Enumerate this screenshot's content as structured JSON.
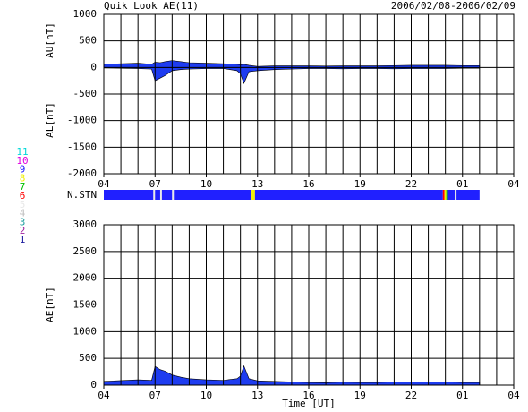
{
  "title": "Quik Look AE(11)",
  "date_range": "2006/02/08-2006/02/09",
  "chart_data": [
    {
      "type": "area",
      "ylabel_upper": "AU[nT]",
      "ylabel_lower": "AL[nT]",
      "x": [
        4,
        5,
        6,
        6.8,
        7,
        7.3,
        7.6,
        8,
        8.5,
        9,
        10,
        11,
        11.8,
        12,
        12.2,
        12.5,
        13,
        14,
        15,
        16,
        17,
        18,
        19,
        20,
        21,
        22,
        23,
        24,
        25,
        26
      ],
      "series": [
        {
          "color": "#1e3cf0",
          "values": [
            60,
            70,
            80,
            60,
            100,
            90,
            110,
            130,
            110,
            90,
            80,
            70,
            60,
            50,
            60,
            40,
            20,
            30,
            30,
            30,
            25,
            30,
            30,
            30,
            35,
            40,
            40,
            40,
            35,
            35
          ]
        },
        {
          "color": "#1e3cf0",
          "values": [
            -10,
            -15,
            -20,
            -30,
            -250,
            -200,
            -150,
            -60,
            -40,
            -30,
            -20,
            -20,
            -60,
            -120,
            -300,
            -80,
            -60,
            -40,
            -30,
            -20,
            -20,
            -25,
            -20,
            -20,
            -25,
            -20,
            -20,
            -20,
            -15,
            -15
          ]
        }
      ],
      "xlim": [
        4,
        28
      ],
      "xticks": [
        {
          "value": 4,
          "label": "04"
        },
        {
          "value": 7,
          "label": "07"
        },
        10,
        13,
        16,
        19,
        22,
        {
          "value": 25,
          "label": "01"
        },
        {
          "value": 28,
          "label": "04"
        }
      ],
      "xgrid": [
        4,
        5,
        6,
        7,
        8,
        9,
        10,
        11,
        12,
        13,
        14,
        15,
        16,
        17,
        18,
        19,
        20,
        21,
        22,
        23,
        24,
        25,
        26,
        27,
        28
      ],
      "ylim": [
        -2000,
        1000
      ],
      "yticks": [
        1000,
        500,
        0,
        -500,
        -1000,
        -1500,
        -2000
      ],
      "grid": true
    },
    {
      "type": "segments",
      "label": "N.STN",
      "x": [
        4,
        6.9,
        7.0,
        7.3,
        7.4,
        8.0,
        8.1,
        12.65,
        12.85,
        23.85,
        23.95,
        24.05,
        24.15,
        24.55,
        24.65
      ],
      "values": [
        9,
        5,
        9,
        5,
        9,
        5,
        9,
        8,
        9,
        6,
        8,
        7,
        9,
        5,
        9
      ],
      "end": 26,
      "xlim": [
        4,
        28
      ],
      "legend": {
        "values": [
          11,
          10,
          9,
          8,
          7,
          6,
          5,
          4,
          3,
          2,
          1
        ],
        "colors": [
          "#00d8d8",
          "#e000e0",
          "#2020ff",
          "#f0f000",
          "#00c000",
          "#ff0000",
          "#e8e8e8",
          "#c0c0c0",
          "#20a0a0",
          "#a020a0",
          "#2020a0"
        ]
      }
    },
    {
      "type": "area",
      "ylabel": "AE[nT]",
      "xlabel": "Time [UT]",
      "x": [
        4,
        5,
        6,
        6.8,
        7,
        7.3,
        7.6,
        8,
        8.5,
        9,
        10,
        11,
        11.8,
        12,
        12.2,
        12.5,
        13,
        14,
        15,
        16,
        17,
        18,
        19,
        20,
        21,
        22,
        23,
        24,
        25,
        26
      ],
      "series": [
        {
          "color": "#1e3cf0",
          "values": [
            70,
            85,
            100,
            90,
            350,
            290,
            260,
            190,
            150,
            120,
            100,
            90,
            120,
            170,
            360,
            120,
            80,
            70,
            60,
            50,
            45,
            55,
            50,
            50,
            60,
            60,
            60,
            60,
            50,
            50
          ]
        }
      ],
      "xlim": [
        4,
        28
      ],
      "xticks": [
        {
          "value": 4,
          "label": "04"
        },
        {
          "value": 7,
          "label": "07"
        },
        10,
        13,
        16,
        19,
        22,
        {
          "value": 25,
          "label": "01"
        },
        {
          "value": 28,
          "label": "04"
        }
      ],
      "xgrid": [
        4,
        5,
        6,
        7,
        8,
        9,
        10,
        11,
        12,
        13,
        14,
        15,
        16,
        17,
        18,
        19,
        20,
        21,
        22,
        23,
        24,
        25,
        26,
        27,
        28
      ],
      "ylim": [
        0,
        3000
      ],
      "yticks": [
        3000,
        2500,
        2000,
        1500,
        1000,
        500,
        0
      ],
      "grid": true
    }
  ]
}
